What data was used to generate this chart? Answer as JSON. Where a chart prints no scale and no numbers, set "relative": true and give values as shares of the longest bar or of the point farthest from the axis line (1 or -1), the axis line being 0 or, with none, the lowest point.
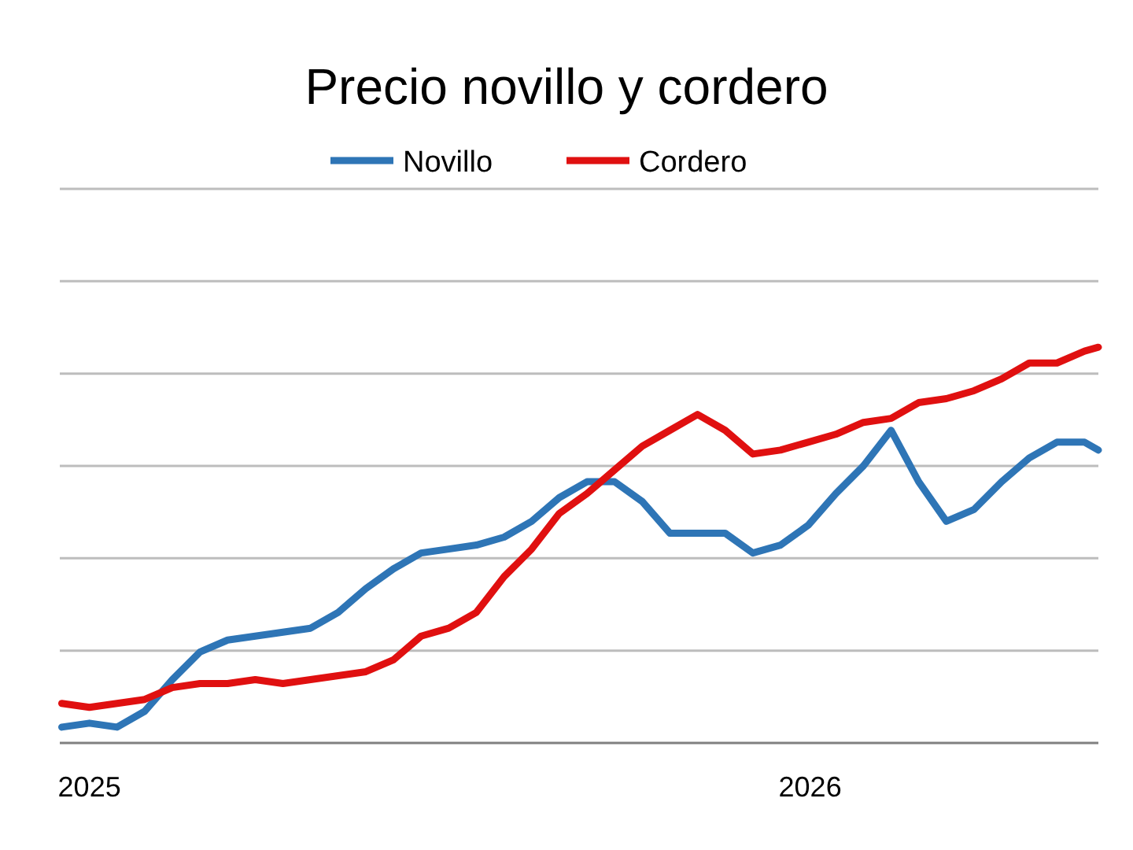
{
  "chart_data": {
    "type": "line",
    "title": "Precio novillo y cordero",
    "relative": true,
    "grid": "y",
    "legend": "top",
    "line_style": "solid",
    "marker": "none",
    "x": [
      "2024-12-18",
      "2025-01-01",
      "2025-01-15",
      "2025-01-29",
      "2025-02-12",
      "2025-02-26",
      "2025-03-12",
      "2025-03-26",
      "2025-04-09",
      "2025-04-23",
      "2025-05-07",
      "2025-05-21",
      "2025-06-04",
      "2025-06-18",
      "2025-07-02",
      "2025-07-16",
      "2025-07-30",
      "2025-08-13",
      "2025-08-27",
      "2025-09-10",
      "2025-09-24",
      "2025-10-08",
      "2025-10-22",
      "2025-11-05",
      "2025-11-19",
      "2025-12-03",
      "2025-12-17",
      "2025-12-31",
      "2026-01-14",
      "2026-01-28",
      "2026-02-11",
      "2026-02-25",
      "2026-03-11",
      "2026-03-25",
      "2026-04-08",
      "2026-04-22",
      "2026-05-06",
      "2026-05-20",
      "2026-05-27"
    ],
    "xlim": [
      "2024-12-17",
      "2026-05-27"
    ],
    "xticks": [
      "2025",
      "2026"
    ],
    "series": [
      {
        "name": "Novillo",
        "color": "#2e75b6",
        "values": [
          0.04,
          0.05,
          0.04,
          0.08,
          0.16,
          0.23,
          0.26,
          0.27,
          0.28,
          0.29,
          0.33,
          0.39,
          0.44,
          0.48,
          0.49,
          0.5,
          0.52,
          0.56,
          0.62,
          0.66,
          0.66,
          0.61,
          0.53,
          0.53,
          0.53,
          0.48,
          0.5,
          0.55,
          0.63,
          0.7,
          0.79,
          0.66,
          0.56,
          0.59,
          0.66,
          0.72,
          0.76,
          0.76,
          0.74
        ]
      },
      {
        "name": "Cordero",
        "color": "#e01010",
        "values": [
          0.1,
          0.09,
          0.1,
          0.11,
          0.14,
          0.15,
          0.15,
          0.16,
          0.15,
          0.16,
          0.17,
          0.18,
          0.21,
          0.27,
          0.29,
          0.33,
          0.42,
          0.49,
          0.58,
          0.63,
          0.69,
          0.75,
          0.79,
          0.83,
          0.79,
          0.73,
          0.74,
          0.76,
          0.78,
          0.81,
          0.82,
          0.86,
          0.87,
          0.89,
          0.92,
          0.96,
          0.96,
          0.99,
          1
        ]
      }
    ]
  }
}
